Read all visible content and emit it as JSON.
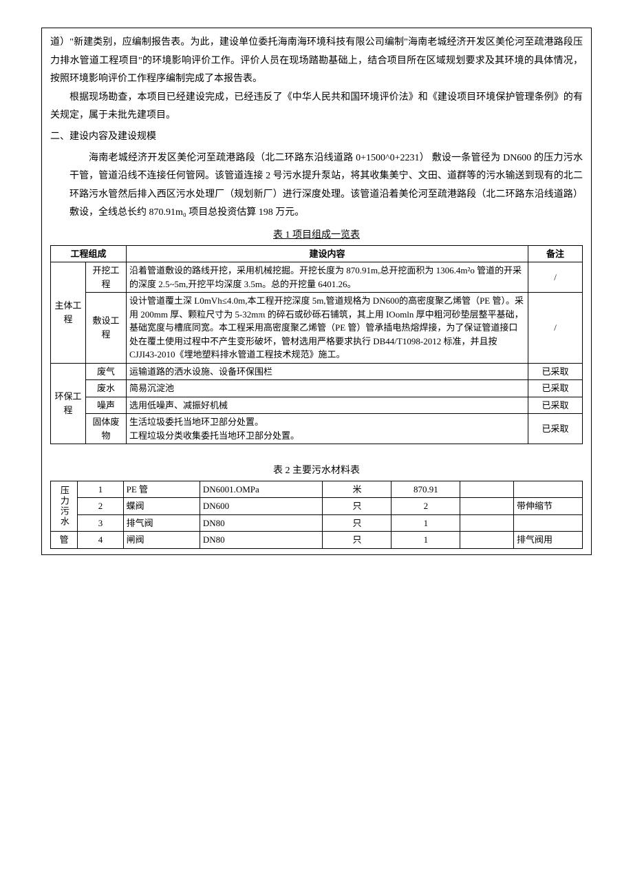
{
  "intro": {
    "p1": "道）\"新建类别，应编制报告表。为此，建设单位委托海南海环境科技有限公司编制\"海南老城经济开发区美伦河至疏港路段压力排水管道工程项目\"的环境影响评价工作。评价人员在现场踏勘基础上，结合项目所在区域规划要求及其环境的具体情况，按照环境影响评价工作程序编制完成了本报告表。",
    "p2": "根据现场勘查，本项目已经建设完成，已经违反了《中华人民共和国环境评价法》和《建设项目环境保护管理条例》的有关规定，属于未批先建项目。"
  },
  "section2": {
    "heading": "二、建设内容及建设规模",
    "body": "海南老城经济开发区美伦河至疏港路段（北二环路东沿线道路 0+1500^0+2231） 敷设一条管径为 DN600 的压力污水干管，管道沿线不连接任何管网。该管道连接 2 号污水提升泵站，将其收集美宁、文田、道群等的污水输送到现有的北二环路污水管然后排入西区污水处理厂（规划新厂）进行深度处理。该管道沿着美伦河至疏港路段（北二环路东沿线道路）敷设，全线总长约 870.91m₀ 项目总投资估算 198 万元。"
  },
  "table1": {
    "caption": "表 1 项目组成一览表",
    "headers": {
      "c1": "工程组成",
      "c2": "建设内容",
      "c3": "备注"
    },
    "g1": {
      "group": "主体工程",
      "r1": {
        "sub": "开挖工程",
        "content": "沿着管道敷设的路线开挖，采用机械挖掘。开挖长度为 870.91m,总开挖面积为 1306.4m²o 管道的开采的深度 2.5~5m,开挖平均深度 3.5m。总的开挖量 6401.26。",
        "note": "/"
      },
      "r2": {
        "sub": "敷设工程",
        "content": "设计管道覆土深 L0mVh≤4.0m,本工程开挖深度 5m,管道规格为 DN600的高密度聚乙烯管（PE 管）。采用 200mm 厚、颗粒尺寸为 5-32mπι 的碎石或砂砾石铺筑，其上用 IOomln 厚中粗河砂垫层整平基础，基础宽度与槽底同宽。本工程采用高密度聚乙烯管（PE 管）管承插电热熔焊接，为了保证管道接口处在覆土使用过程中不产生变形破坏，管材选用严格要求执行 DB44/T1098-2012 标准，并且按 CJJI43-2010《埋地塑料排水管道工程技术规范》施工。",
        "note": "/"
      }
    },
    "g2": {
      "group": "环保工程",
      "r1": {
        "sub": "废气",
        "content": "运输道路的洒水设施、设备环保围栏",
        "note": "已采取"
      },
      "r2": {
        "sub": "废水",
        "content": "简易沉淀池",
        "note": "已采取"
      },
      "r3": {
        "sub": "噪声",
        "content": "选用低噪声、减振好机械",
        "note": "已采取"
      },
      "r4": {
        "sub": "固体废物",
        "content": "生活垃圾委托当地环卫部分处置。\n工程垃圾分类收集委托当地环卫部分处置。",
        "note": "已采取"
      }
    }
  },
  "table2": {
    "caption": "表 2 主要污水材料表",
    "cat1": "压力污水",
    "cat2": "管",
    "rows": [
      {
        "idx": "1",
        "name": "PE 管",
        "spec": "DN6001.OMPa",
        "unit": "米",
        "qty": "870.91",
        "e": "",
        "note": ""
      },
      {
        "idx": "2",
        "name": "蝶阀",
        "spec": "DN600",
        "unit": "只",
        "qty": "2",
        "e": "",
        "note": "带伸缩节"
      },
      {
        "idx": "3",
        "name": "排气阀",
        "spec": "DN80",
        "unit": "只",
        "qty": "1",
        "e": "",
        "note": ""
      },
      {
        "idx": "4",
        "name": "闸阀",
        "spec": "DN80",
        "unit": "只",
        "qty": "1",
        "e": "",
        "note": "排气阀用"
      }
    ]
  }
}
